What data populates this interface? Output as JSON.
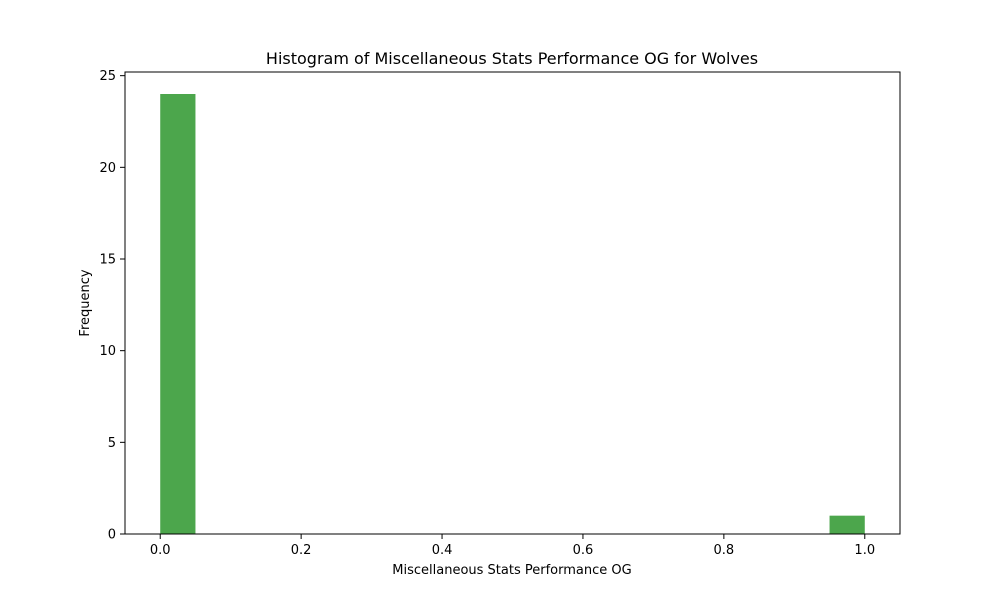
{
  "chart_data": {
    "type": "bar",
    "title": "Histogram of Miscellaneous Stats Performance OG for Wolves",
    "xlabel": "Miscellaneous Stats Performance OG",
    "ylabel": "Frequency",
    "xlim": [
      -0.05,
      1.05
    ],
    "ylim": [
      0,
      25.2
    ],
    "xticks": [
      "0.0",
      "0.2",
      "0.4",
      "0.6",
      "0.8",
      "1.0"
    ],
    "xtick_values": [
      0.0,
      0.2,
      0.4,
      0.6,
      0.8,
      1.0
    ],
    "yticks": [
      "0",
      "5",
      "10",
      "15",
      "20",
      "25"
    ],
    "ytick_values": [
      0,
      5,
      10,
      15,
      20,
      25
    ],
    "bins": [
      {
        "x0": 0.0,
        "x1": 0.05,
        "count": 24
      },
      {
        "x0": 0.95,
        "x1": 1.0,
        "count": 1
      }
    ],
    "bar_color": "#4ca64c",
    "grid": false
  }
}
